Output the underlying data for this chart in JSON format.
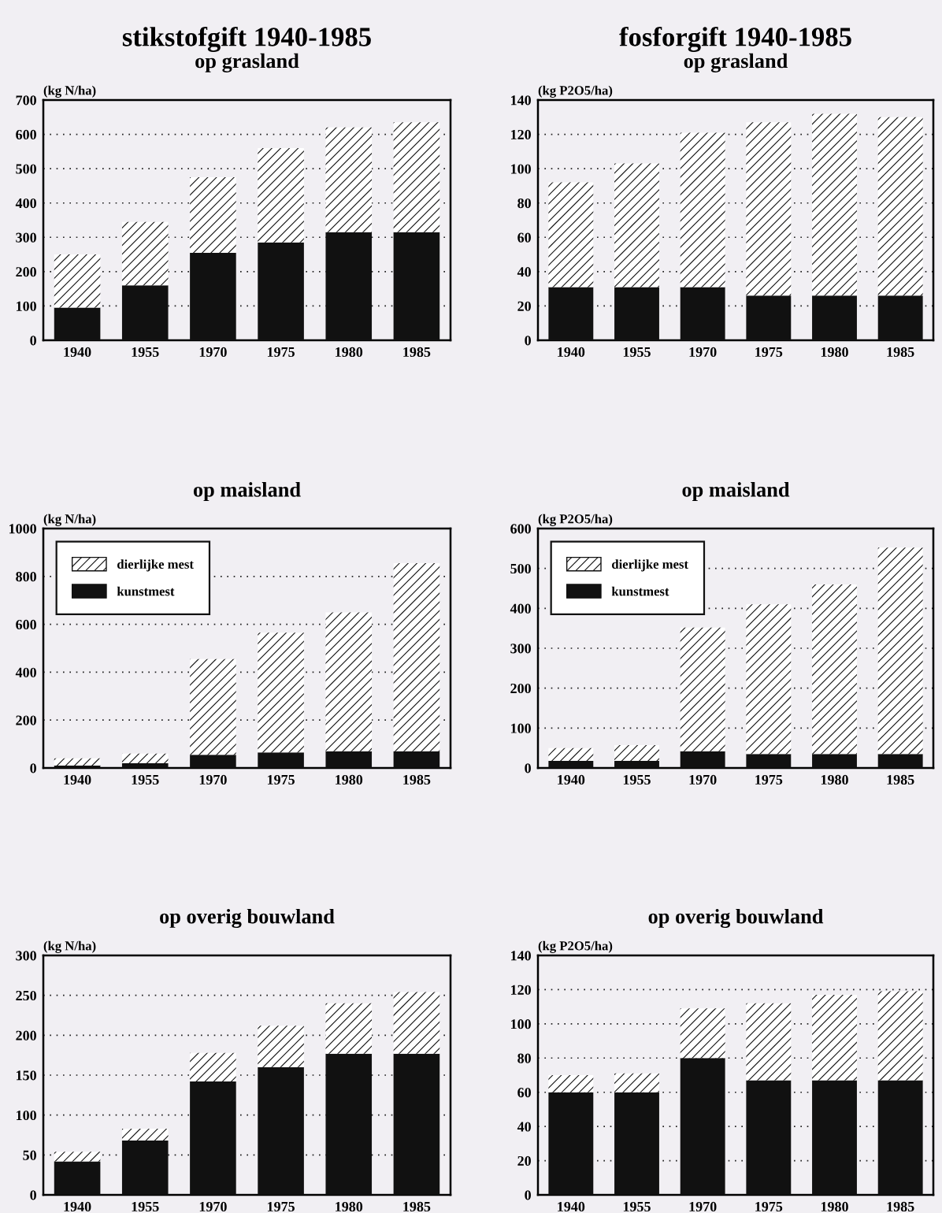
{
  "chart_data": [
    {
      "type": "bar",
      "title": "stikstofgift 1940-1985",
      "subtitle": "op grasland",
      "ylabel": "(kg N/ha)",
      "categories": [
        "1940",
        "1955",
        "1970",
        "1975",
        "1980",
        "1985"
      ],
      "stacked": true,
      "ylim": [
        0,
        700
      ],
      "yticks": [
        0,
        100,
        200,
        300,
        400,
        500,
        600,
        700
      ],
      "grid": "y",
      "legend": false,
      "series": [
        {
          "color": "#111111",
          "values": [
            95,
            160,
            255,
            285,
            315,
            315
          ]
        },
        {
          "color": "#ffffff",
          "values": [
            155,
            185,
            220,
            275,
            305,
            320
          ]
        }
      ]
    },
    {
      "type": "bar",
      "title": "fosforgift 1940-1985",
      "subtitle": "op grasland",
      "ylabel": "(kg P2O5/ha)",
      "categories": [
        "1940",
        "1955",
        "1970",
        "1975",
        "1980",
        "1985"
      ],
      "stacked": true,
      "ylim": [
        0,
        140
      ],
      "yticks": [
        0,
        20,
        40,
        60,
        80,
        100,
        120,
        140
      ],
      "grid": "y",
      "legend": false,
      "series": [
        {
          "color": "#111111",
          "values": [
            31,
            31,
            31,
            26,
            26,
            26
          ]
        },
        {
          "color": "#ffffff",
          "values": [
            61,
            72,
            90,
            101,
            106,
            104
          ]
        }
      ]
    },
    {
      "type": "bar",
      "title": "op maisland",
      "ylabel": "(kg N/ha)",
      "categories": [
        "1940",
        "1955",
        "1970",
        "1975",
        "1980",
        "1985"
      ],
      "stacked": true,
      "ylim": [
        0,
        1000
      ],
      "yticks": [
        0,
        200,
        400,
        600,
        800,
        1000
      ],
      "grid": "y",
      "legend": "top left",
      "series": [
        {
          "name": "kunstmest",
          "color": "#111111",
          "values": [
            10,
            20,
            55,
            65,
            70,
            70
          ]
        },
        {
          "name": "dierlijke mest",
          "color": "#ffffff",
          "values": [
            30,
            40,
            400,
            500,
            580,
            785
          ]
        }
      ]
    },
    {
      "type": "bar",
      "title": "op maisland",
      "ylabel": "(kg P2O5/ha)",
      "categories": [
        "1940",
        "1955",
        "1970",
        "1975",
        "1980",
        "1985"
      ],
      "stacked": true,
      "ylim": [
        0,
        600
      ],
      "yticks": [
        0,
        100,
        200,
        300,
        400,
        500,
        600
      ],
      "grid": "y",
      "legend": "top left",
      "series": [
        {
          "name": "kunstmest",
          "color": "#111111",
          "values": [
            18,
            18,
            42,
            35,
            35,
            35
          ]
        },
        {
          "name": "dierlijke mest",
          "color": "#ffffff",
          "values": [
            32,
            39,
            310,
            375,
            425,
            517
          ]
        }
      ]
    },
    {
      "type": "bar",
      "title": "op overig bouwland",
      "ylabel": "(kg N/ha)",
      "categories": [
        "1940",
        "1955",
        "1970",
        "1975",
        "1980",
        "1985"
      ],
      "stacked": true,
      "ylim": [
        0,
        300
      ],
      "yticks": [
        0,
        50,
        100,
        150,
        200,
        250,
        300
      ],
      "grid": "y",
      "legend": false,
      "series": [
        {
          "color": "#111111",
          "values": [
            42,
            68,
            142,
            160,
            177,
            177
          ]
        },
        {
          "color": "#ffffff",
          "values": [
            12,
            15,
            36,
            52,
            63,
            77
          ]
        }
      ]
    },
    {
      "type": "bar",
      "title": "op overig bouwland",
      "ylabel": "(kg P2O5/ha)",
      "categories": [
        "1940",
        "1955",
        "1970",
        "1975",
        "1980",
        "1985"
      ],
      "stacked": true,
      "ylim": [
        0,
        140
      ],
      "yticks": [
        0,
        20,
        40,
        60,
        80,
        100,
        120,
        140
      ],
      "grid": "y",
      "legend": false,
      "series": [
        {
          "color": "#111111",
          "values": [
            60,
            60,
            80,
            67,
            67,
            67
          ]
        },
        {
          "color": "#ffffff",
          "values": [
            10,
            11,
            29,
            45,
            50,
            52
          ]
        }
      ]
    }
  ]
}
